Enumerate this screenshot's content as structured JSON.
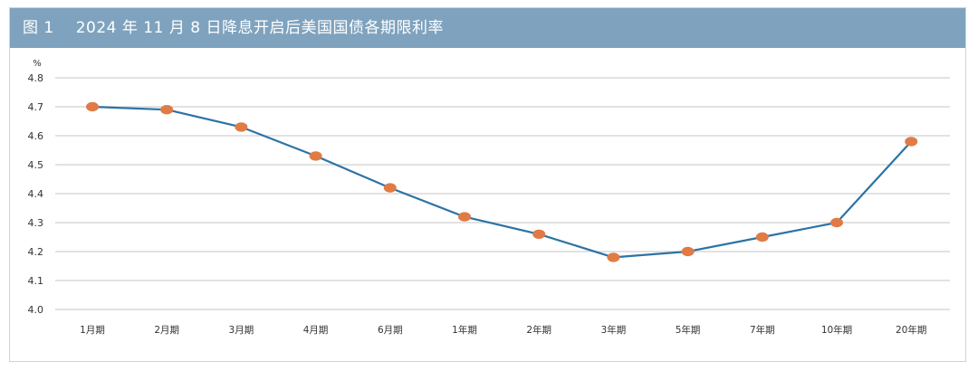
{
  "figure": {
    "label": "图 1",
    "title": "2024 年 11 月 8 日降息开启后美国国债各期限利率"
  },
  "colors": {
    "title_bar": "#7fa3be",
    "line": "#2c73a4",
    "marker": "#e07b45",
    "grid": "#d9d9d9"
  },
  "chart_data": {
    "type": "line",
    "title": "2024 年 11 月 8 日降息开启后美国国债各期限利率",
    "ylabel": "%",
    "xlabel": "",
    "ylim": [
      4.0,
      4.8
    ],
    "yticks": [
      "4.0",
      "4.1",
      "4.2",
      "4.3",
      "4.4",
      "4.5",
      "4.6",
      "4.7",
      "4.8"
    ],
    "grid": true,
    "categories": [
      "1月期",
      "2月期",
      "3月期",
      "4月期",
      "6月期",
      "1年期",
      "2年期",
      "3年期",
      "5年期",
      "7年期",
      "10年期",
      "20年期"
    ],
    "series": [
      {
        "values": [
          4.7,
          4.69,
          4.63,
          4.53,
          4.42,
          4.32,
          4.26,
          4.18,
          4.2,
          4.25,
          4.3,
          4.58
        ]
      }
    ]
  }
}
